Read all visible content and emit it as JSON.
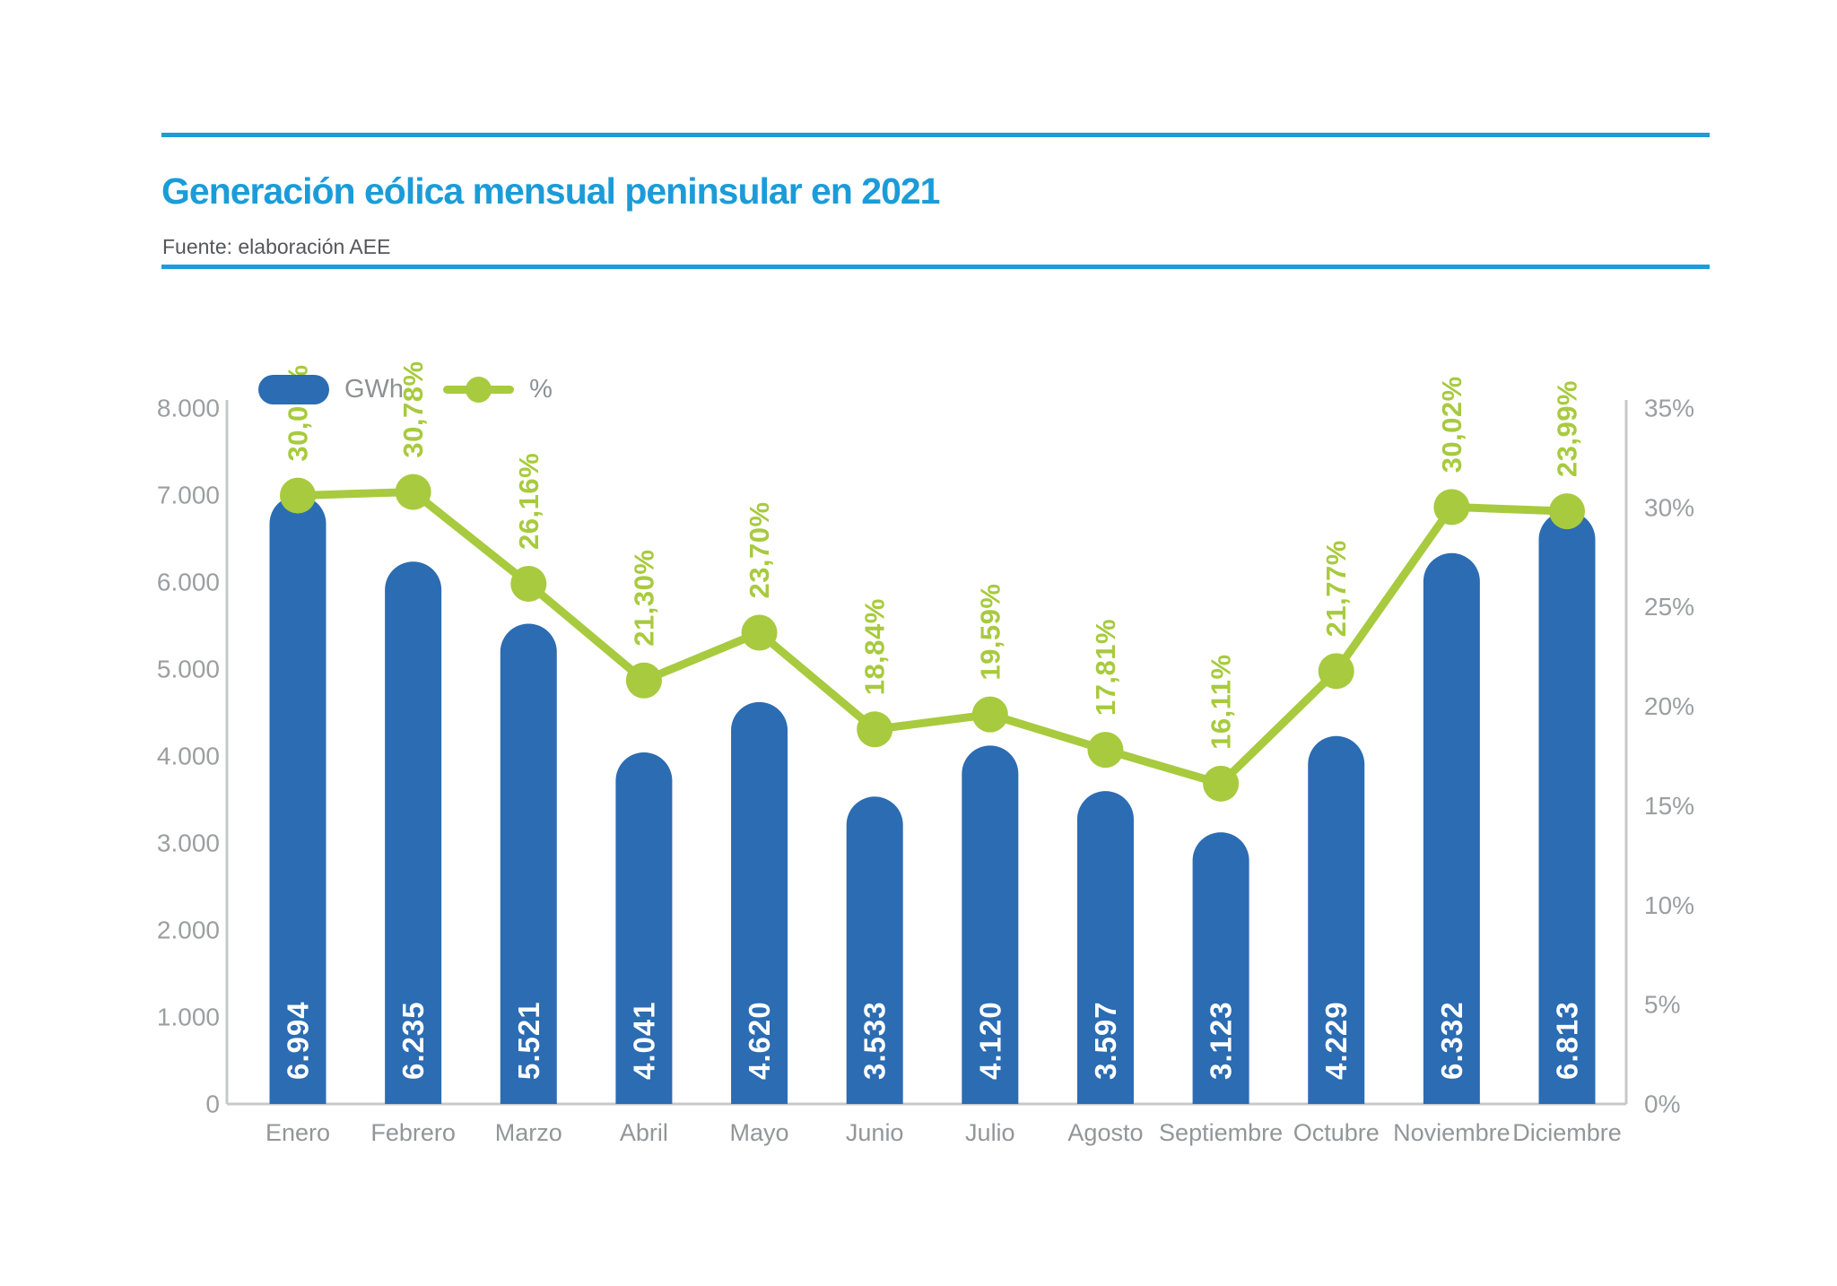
{
  "header": {
    "title": "Generación eólica mensual peninsular en 2021",
    "source": "Fuente: elaboración AEE"
  },
  "legend": {
    "bar_label": "GWh",
    "line_label": "%"
  },
  "colors": {
    "bar_blue": "#2B6CB3",
    "line_green": "#A8CA3E",
    "title_blue": "#1B9CD8",
    "rule_blue": "#1E9CD8",
    "axis_text_gray": "#9C9EA0",
    "month_text_gray": "#939598",
    "axis_line_gray": "#C7C8CA",
    "bar_value_text": "#FFFFFF"
  },
  "chart_data": {
    "type": "bar",
    "title": "Generación eólica mensual peninsular en 2021",
    "subtitle": "Fuente: elaboración AEE",
    "categories": [
      "Enero",
      "Febrero",
      "Marzo",
      "Abril",
      "Mayo",
      "Junio",
      "Julio",
      "Agosto",
      "Septiembre",
      "Octubre",
      "Noviembre",
      "Diciembre"
    ],
    "series": [
      {
        "name": "GWh",
        "chart": "bar",
        "values": [
          6994,
          6235,
          5521,
          4041,
          4620,
          3533,
          4120,
          3597,
          3123,
          4229,
          6332,
          6813
        ],
        "labels": [
          "6.994",
          "6.235",
          "5.521",
          "4.041",
          "4.620",
          "3.533",
          "4.120",
          "3.597",
          "3.123",
          "4.229",
          "6.332",
          "6.813"
        ]
      },
      {
        "name": "%",
        "chart": "line",
        "values": [
          30.09,
          30.78,
          26.16,
          21.3,
          23.7,
          18.84,
          19.59,
          17.81,
          16.11,
          21.77,
          30.02,
          23.99
        ],
        "labels": [
          "30,09%",
          "30,78%",
          "26,16%",
          "21,30%",
          "23,70%",
          "18,84%",
          "19,59%",
          "17,81%",
          "16,11%",
          "21,77%",
          "30,02%",
          "23,99%"
        ]
      }
    ],
    "y_left": {
      "min": 0,
      "max": 8000,
      "step": 1000,
      "tick_labels_bottom_up": [
        "0",
        "1.000",
        "2.000",
        "3.000",
        "4.000",
        "5.000",
        "6.000",
        "7.000",
        "8.000"
      ]
    },
    "y_right": {
      "min": 0,
      "max": 35,
      "step": 5,
      "tick_labels_bottom_up": [
        "0%",
        "5%",
        "10%",
        "15%",
        "20%",
        "25%",
        "30%",
        "35%"
      ]
    },
    "grid": false,
    "legend_position": "top-left"
  }
}
